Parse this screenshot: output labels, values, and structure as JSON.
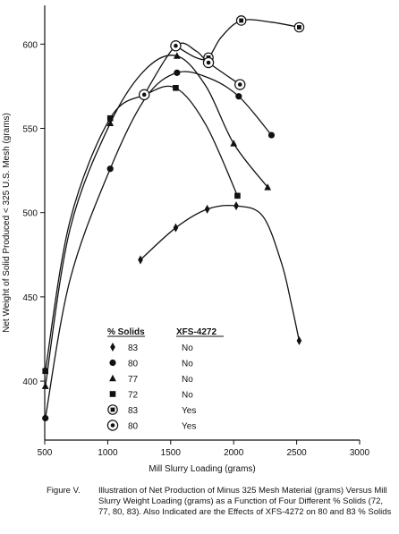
{
  "chart_data": {
    "type": "line",
    "xlabel": "Mill Slurry Loading (grams)",
    "ylabel": "Net Weight of Solid Produced < 325 U.S. Mesh (grams)",
    "xlim": [
      500,
      3000
    ],
    "ylim": [
      365,
      623
    ],
    "xticks": [
      500,
      1000,
      1500,
      2000,
      2500,
      3000
    ],
    "yticks": [
      400,
      450,
      500,
      550,
      600
    ],
    "grid": false,
    "legend": {
      "placement": "bottom-center",
      "col1_header": "% Solids",
      "col2_header": "XFS-4272"
    },
    "series": [
      {
        "name": "83",
        "additive": "No",
        "marker": "diamond",
        "points": [
          [
            1260,
            472
          ],
          [
            1540,
            491
          ],
          [
            1790,
            502
          ],
          [
            2020,
            504
          ],
          [
            2520,
            424
          ]
        ],
        "curve": [
          [
            1260,
            472
          ],
          [
            1540,
            491
          ],
          [
            1790,
            502
          ],
          [
            2020,
            504
          ],
          [
            2230,
            498
          ],
          [
            2380,
            470
          ],
          [
            2460,
            445
          ],
          [
            2520,
            424
          ]
        ]
      },
      {
        "name": "80",
        "additive": "No",
        "marker": "circle",
        "points": [
          [
            505,
            378
          ],
          [
            1020,
            526
          ],
          [
            1550,
            583
          ],
          [
            2040,
            569
          ],
          [
            2300,
            546
          ]
        ],
        "curve": [
          [
            505,
            378
          ],
          [
            700,
            460
          ],
          [
            1020,
            526
          ],
          [
            1300,
            568
          ],
          [
            1550,
            583
          ],
          [
            1800,
            580
          ],
          [
            2040,
            569
          ],
          [
            2300,
            546
          ]
        ]
      },
      {
        "name": "77",
        "additive": "No",
        "marker": "triangle",
        "points": [
          [
            505,
            397
          ],
          [
            1020,
            553
          ],
          [
            1550,
            593
          ],
          [
            2000,
            541
          ],
          [
            2270,
            515
          ]
        ],
        "curve": [
          [
            505,
            397
          ],
          [
            700,
            490
          ],
          [
            1020,
            553
          ],
          [
            1300,
            585
          ],
          [
            1550,
            593
          ],
          [
            1780,
            575
          ],
          [
            2000,
            541
          ],
          [
            2270,
            515
          ]
        ]
      },
      {
        "name": "72",
        "additive": "No",
        "marker": "square",
        "points": [
          [
            505,
            406
          ],
          [
            1020,
            556
          ],
          [
            1540,
            574
          ],
          [
            2030,
            510
          ]
        ],
        "curve": [
          [
            505,
            406
          ],
          [
            700,
            495
          ],
          [
            1020,
            556
          ],
          [
            1300,
            570
          ],
          [
            1540,
            574
          ],
          [
            1780,
            552
          ],
          [
            2030,
            510
          ]
        ]
      },
      {
        "name": "83",
        "additive": "Yes",
        "marker": "boxed-circle",
        "points": [
          [
            1540,
            599
          ],
          [
            1800,
            592
          ],
          [
            2060,
            614
          ],
          [
            2520,
            610
          ]
        ],
        "curve": [
          [
            1540,
            599
          ],
          [
            1700,
            592
          ],
          [
            1800,
            592
          ],
          [
            1900,
            604
          ],
          [
            2060,
            614
          ],
          [
            2300,
            613
          ],
          [
            2520,
            610
          ]
        ]
      },
      {
        "name": "80",
        "additive": "Yes",
        "marker": "ringed-circle",
        "points": [
          [
            1290,
            570
          ],
          [
            1540,
            599
          ],
          [
            1800,
            589
          ],
          [
            2050,
            576
          ]
        ],
        "curve": [
          [
            1290,
            570
          ],
          [
            1540,
            599
          ],
          [
            1700,
            596
          ],
          [
            1800,
            589
          ],
          [
            2050,
            576
          ]
        ]
      }
    ]
  },
  "caption": {
    "label": "Figure V.",
    "text": "Illustration of Net Production of Minus 325 Mesh Material (grams) Versus Mill Slurry Weight Loading (grams) as a Function of Four Different % Solids (72, 77, 80, 83). Also Indicated are the Effects of XFS-4272 on 80 and 83 % Solids"
  }
}
